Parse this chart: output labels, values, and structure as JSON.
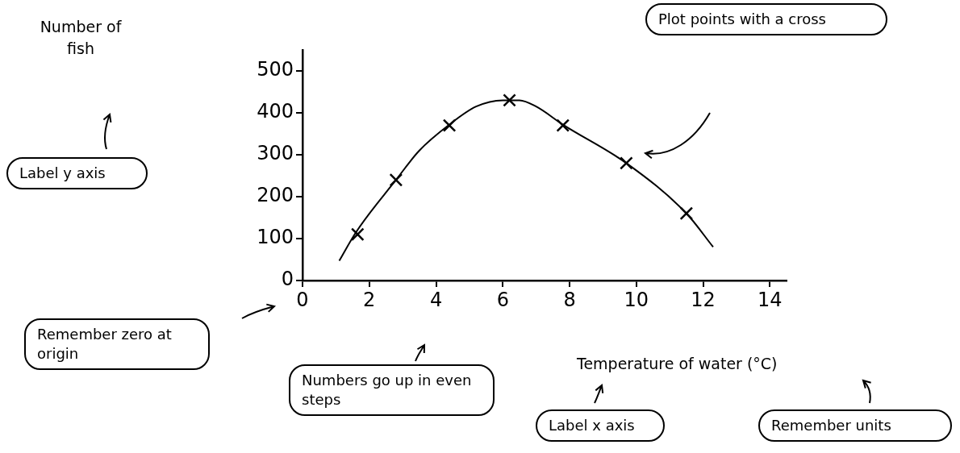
{
  "chart_data": {
    "type": "scatter",
    "xlabel": "Temperature of water (°C)",
    "xlim": [
      0,
      14.5
    ],
    "xticks": [
      0,
      2,
      4,
      6,
      8,
      10,
      12,
      14
    ],
    "ylim": [
      0,
      550
    ],
    "yticks": [
      0,
      100,
      200,
      300,
      400,
      500
    ],
    "grid": false,
    "legend": false,
    "marker": "cross",
    "series": [
      {
        "color": "#000000",
        "x": [
          1.65,
          2.8,
          4.4,
          6.2,
          7.8,
          9.7,
          11.5
        ],
        "values": [
          110,
          240,
          370,
          430,
          370,
          280,
          160
        ]
      },
      {
        "type": "line",
        "color": "#000000",
        "marker": "none",
        "x": [
          1.1,
          1.6,
          2.8,
          3.5,
          4.4,
          5.2,
          6.0,
          6.5,
          7.0,
          7.8,
          9.7,
          11.5,
          12.3
        ],
        "values": [
          47,
          115,
          240,
          310,
          372,
          415,
          430,
          430,
          415,
          372,
          280,
          160,
          80
        ]
      }
    ],
    "annotations": [
      "Number of fish",
      "Plot points with a cross",
      "Label y axis",
      "Remember zero at origin",
      "Numbers go up in even steps",
      "Label x axis",
      "Remember units"
    ]
  }
}
